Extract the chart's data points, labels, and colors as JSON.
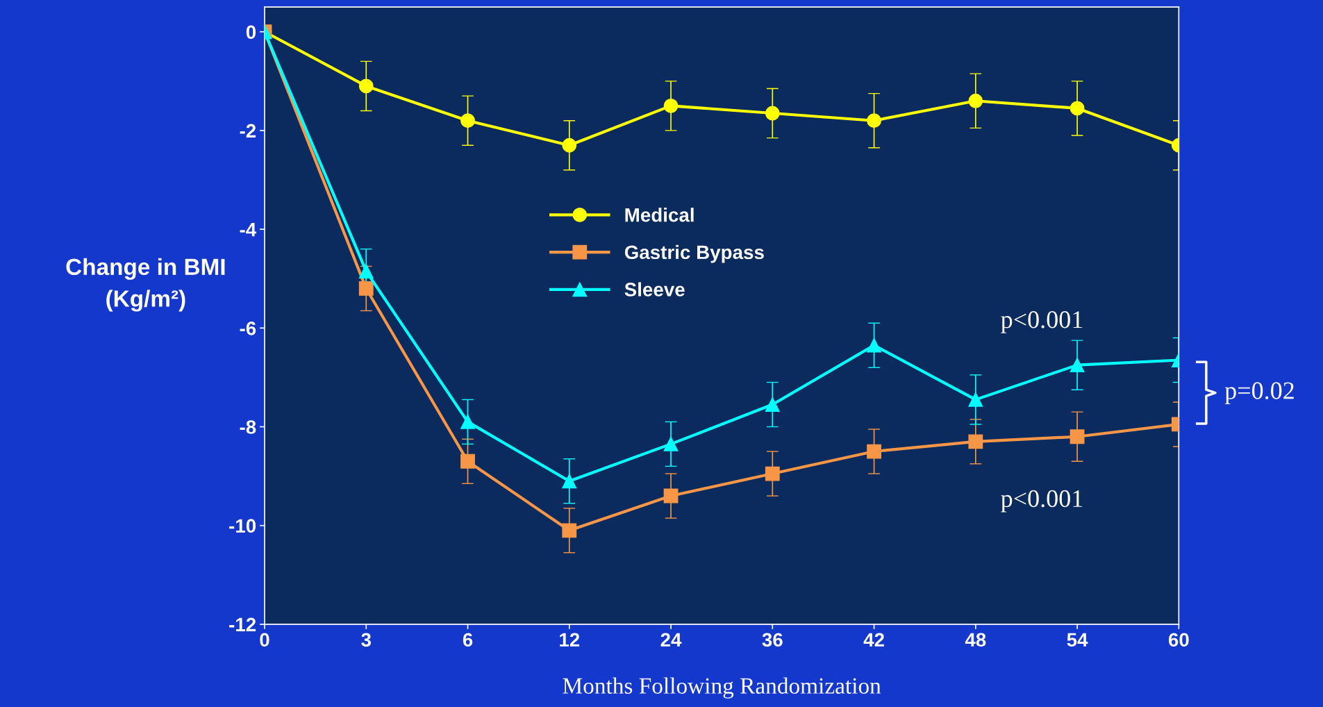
{
  "chart_data": {
    "type": "line",
    "xlabel": "Months Following Randomization",
    "ylabel": "Change in BMI\n(Kg/m²)",
    "categories": [
      "0",
      "3",
      "6",
      "12",
      "24",
      "36",
      "42",
      "48",
      "54",
      "60"
    ],
    "ylim": [
      -12,
      0.5
    ],
    "yticks": [
      0,
      -2,
      -4,
      -6,
      -8,
      -10,
      -12
    ],
    "grid": false,
    "legend": "center",
    "series": [
      {
        "name": "Medical",
        "color": "#ffff00",
        "marker": "circle",
        "values": [
          0,
          -1.1,
          -1.8,
          -2.3,
          -1.5,
          -1.65,
          -1.8,
          -1.4,
          -1.55,
          -2.3
        ],
        "errors": [
          null,
          0.5,
          0.5,
          0.5,
          0.5,
          0.5,
          0.55,
          0.55,
          0.55,
          0.5
        ]
      },
      {
        "name": "Gastric Bypass",
        "color": "#f79646",
        "marker": "square",
        "values": [
          0,
          -5.2,
          -8.7,
          -10.1,
          -9.4,
          -8.95,
          -8.5,
          -8.3,
          -8.2,
          -7.95
        ],
        "errors": [
          null,
          0.45,
          0.45,
          0.45,
          0.45,
          0.45,
          0.45,
          0.45,
          0.5,
          0.45
        ]
      },
      {
        "name": "Sleeve",
        "color": "#00ffff",
        "marker": "triangle",
        "values": [
          0,
          -4.85,
          -7.9,
          -9.1,
          -8.35,
          -7.55,
          -6.35,
          -7.45,
          -6.75,
          -6.65
        ],
        "errors": [
          null,
          0.45,
          0.45,
          0.45,
          0.45,
          0.45,
          0.45,
          0.5,
          0.5,
          0.45
        ]
      }
    ],
    "annotations": [
      "p<0.001",
      "p<0.001",
      "p=0.02"
    ]
  }
}
